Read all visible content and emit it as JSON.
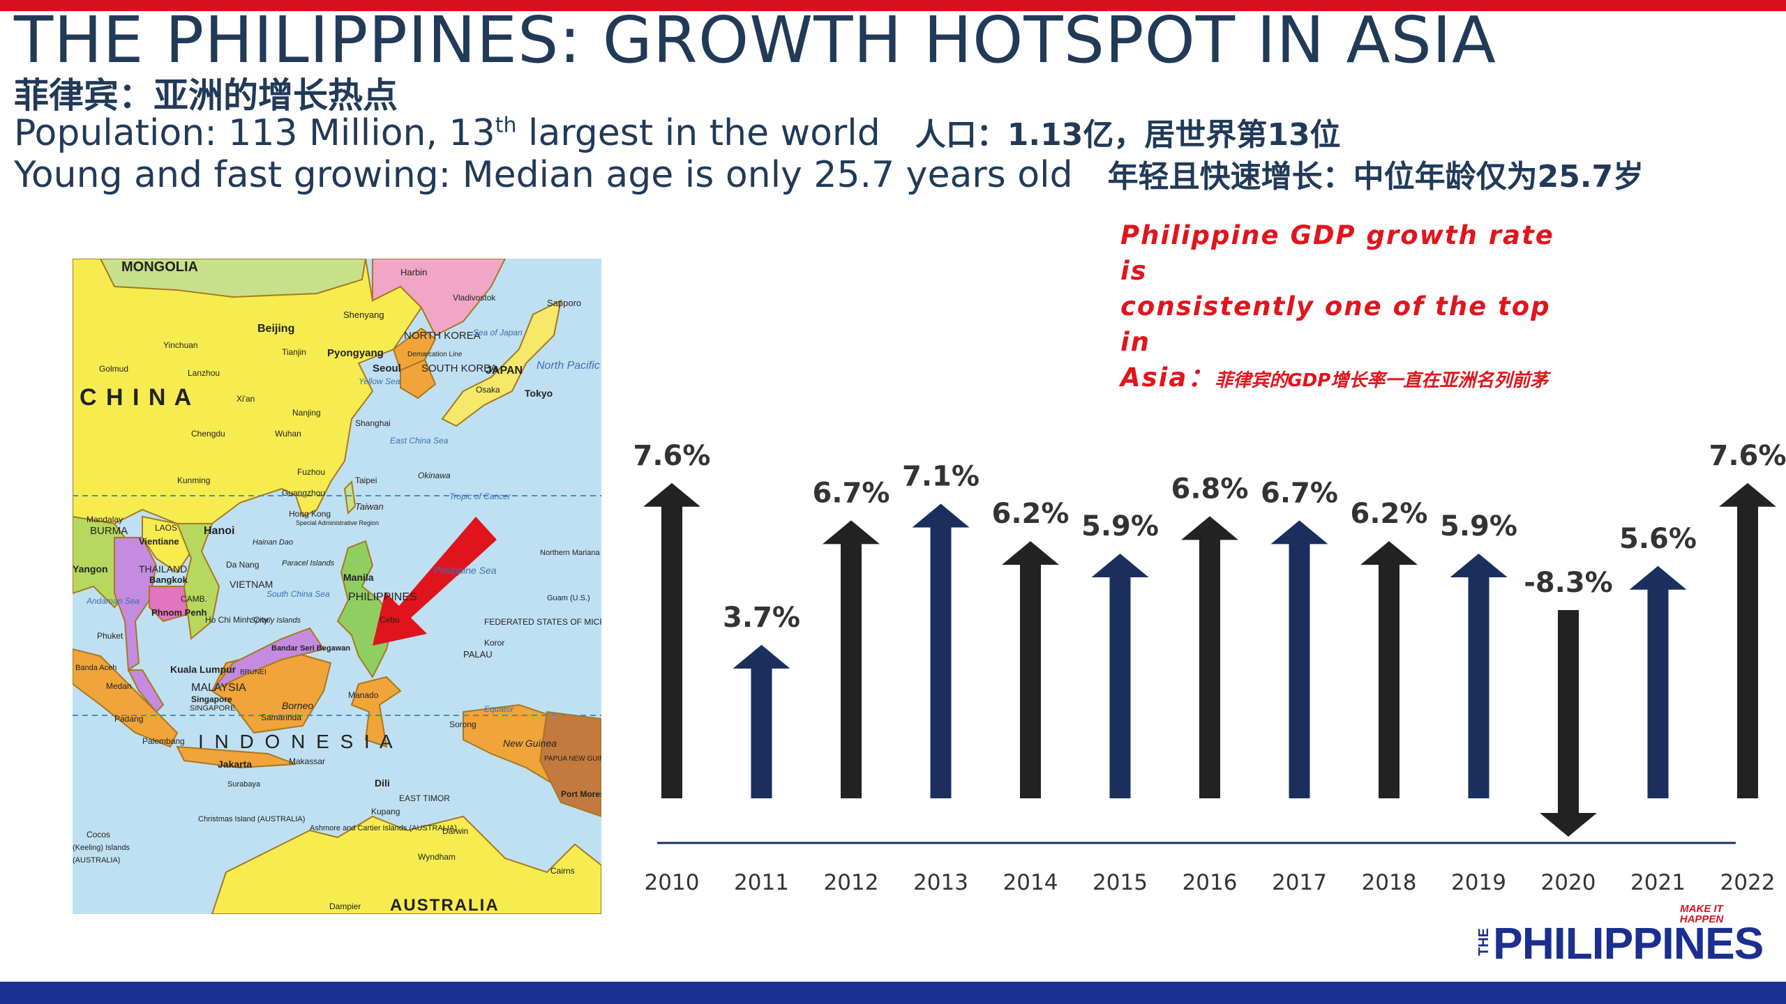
{
  "header": {
    "title": "THE PHILIPPINES: GROWTH HOTSPOT IN ASIA",
    "subtitle_cn": "菲律宾：亚洲的增长热点",
    "population_pre": "Population: 113 Million, 13",
    "population_sup": "th",
    "population_post": " largest in the world",
    "population_cn": "人口：1.13亿，居世界第13位",
    "age_en": "Young and fast growing: Median age is only 25.7 years old",
    "age_cn": "年轻且快速增长：中位年龄仅为25.7岁"
  },
  "map": {
    "labels": {
      "mongolia": "MONGOLIA",
      "china": "C H I N A",
      "harbin": "Harbin",
      "vladivostok": "Vladivostok",
      "sapporo": "Sapporo",
      "shenyang": "Shenyang",
      "beijing": "Beijing",
      "yinchuan": "Yinchuan",
      "golmud": "Golmud",
      "lanzhou": "Lanzhou",
      "tianjin": "Tianjin",
      "pyongyang": "Pyongyang",
      "north_korea": "NORTH KOREA",
      "demarcation": "Demarcation Line",
      "seoul": "Seoul",
      "south_korea": "SOUTH KOREA",
      "sea_of_japan": "Sea of Japan",
      "japan": "JAPAN",
      "north_pacific": "North Pacific Ocean",
      "osaka": "Osaka",
      "tokyo": "Tokyo",
      "yellow_sea": "Yellow Sea",
      "xian": "Xi'an",
      "nanjing": "Nanjing",
      "shanghai": "Shanghai",
      "chengdu": "Chengdu",
      "wuhan": "Wuhan",
      "east_china_sea": "East China Sea",
      "kunming": "Kunming",
      "fuzhou": "Fuzhou",
      "guangzhou": "Guangzhou",
      "taipei": "Taipei",
      "okinawa": "Okinawa",
      "tropic": "Tropic of Cancer",
      "hong_kong": "Hong Kong",
      "hong_kong_sar": "Special Administrative Region",
      "taiwan": "Taiwan",
      "hanoi": "Hanoi",
      "mandalay": "Mandalay",
      "burma": "BURMA",
      "laos": "LAOS",
      "vientiane": "Vientiane",
      "hainan": "Hainan Dao",
      "thailand": "THAILAND",
      "bangkok": "Bangkok",
      "da_nang": "Da Nang",
      "paracel": "Paracel Islands",
      "vietnam": "VIETNAM",
      "yangon": "Yangon",
      "cambodia": "CAMB.",
      "phnom_penh": "Phnom Penh",
      "south_china_sea": "South China Sea",
      "ho_chi_minh": "Ho Chi Minh City",
      "spratly": "Spratly Islands",
      "manila": "Manila",
      "philippines": "PHILIPPINES",
      "philippine_sea": "Philippine Sea",
      "northern_mariana": "Northern Mariana Islands (U.S.)",
      "guam": "Guam (U.S.)",
      "andaman_sea": "Andaman Sea",
      "phuket": "Phuket",
      "cebu": "Cebu",
      "fsm": "FEDERATED STATES OF MICRONESIA",
      "koror": "Koror",
      "palau": "PALAU",
      "bandar_seri": "Bandar Seri Begawan",
      "brunei": "BRUNEI",
      "banda_aceh": "Banda Aceh",
      "medan": "Medan",
      "kuala_lumpur": "Kuala Lumpur",
      "malaysia": "MALAYSIA",
      "singapore": "Singapore",
      "singapore_cap": "SINGAPORE",
      "borneo": "Borneo",
      "samarinda": "Samarinda",
      "manado": "Manado",
      "equator": "Equator",
      "padang": "Padang",
      "palembang": "Palembang",
      "indonesia": "I N D O N E S I A",
      "sorong": "Sorong",
      "new_guinea": "New Guinea",
      "png": "PAPUA NEW GUINEA",
      "jakarta": "Jakarta",
      "makassar": "Makassar",
      "surabaya": "Surabaya",
      "dili": "Dili",
      "east_timor": "EAST TIMOR",
      "kupang": "Kupang",
      "port_moresby": "Port Moresby",
      "christmas": "Christmas Island (AUSTRALIA)",
      "ashmore": "Ashmore and Cartier Islands (AUSTRALIA)",
      "darwin": "Darwin",
      "cocos": "Cocos",
      "keeling": "(Keeling) Islands",
      "australia_paren": "(AUSTRALIA)",
      "wyndham": "Wyndham",
      "cairns": "Cairns",
      "dampier": "Dampier",
      "australia": "AUSTRALIA"
    }
  },
  "note": {
    "line1": "Philippine GDP growth rate is",
    "line2": "consistently one of the top in",
    "line3_en": "Asia：",
    "line3_cn": "菲律宾的GDP增长率一直在亚洲名列前茅"
  },
  "logo": {
    "vertical": "THE",
    "main": "PHILIPPINES",
    "tag": "MAKE IT HAPPEN"
  },
  "chart_data": {
    "type": "bar",
    "title": "",
    "xlabel": "",
    "ylabel": "",
    "categories": [
      "2010",
      "2011",
      "2012",
      "2013",
      "2014",
      "2015",
      "2016",
      "2017",
      "2018",
      "2019",
      "2020",
      "2021",
      "2022"
    ],
    "values": [
      7.6,
      3.7,
      6.7,
      7.1,
      6.2,
      5.9,
      6.8,
      6.7,
      6.2,
      5.9,
      -8.3,
      5.6,
      7.6
    ],
    "labels": [
      "7.6%",
      "3.7%",
      "6.7%",
      "7.1%",
      "6.2%",
      "5.9%",
      "6.8%",
      "6.7%",
      "6.2%",
      "5.9%",
      "-8.3%",
      "5.6%",
      "7.6%"
    ],
    "bar_style": "upward arrow (downward for negative)",
    "colors": [
      "#222222",
      "#1b2f5e",
      "#222222",
      "#1b2f5e",
      "#222222",
      "#1b2f5e",
      "#222222",
      "#1b2f5e",
      "#222222",
      "#1b2f5e",
      "#222222",
      "#1b2f5e",
      "#222222"
    ],
    "axis_color": "#1b2f5e",
    "grid": false,
    "legend": "none"
  }
}
